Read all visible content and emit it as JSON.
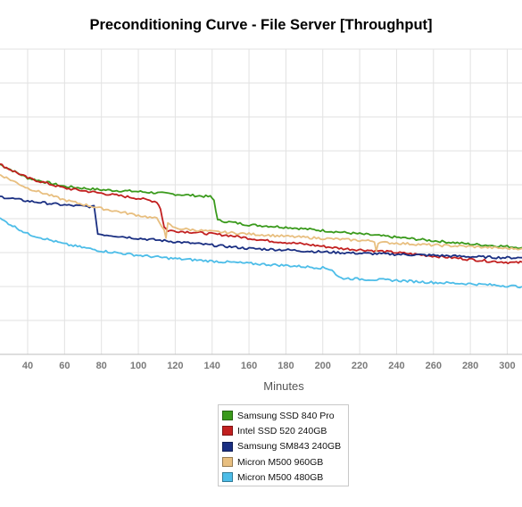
{
  "chart_data": {
    "type": "line",
    "title": "Preconditioning Curve - File Server [Throughput]",
    "xlabel": "Minutes",
    "ylabel": "",
    "xlim": [
      25,
      308
    ],
    "ylim": [
      0,
      9
    ],
    "x_ticks": [
      40,
      60,
      80,
      100,
      120,
      140,
      160,
      180,
      200,
      220,
      240,
      260,
      280,
      300
    ],
    "grid": true,
    "legend_position": "bottom-center",
    "series": [
      {
        "name": "Samsung SSD 840 Pro",
        "color": "#3a9a1c",
        "x": [
          25,
          40,
          60,
          80,
          100,
          120,
          139,
          141,
          143,
          160,
          180,
          200,
          220,
          240,
          260,
          280,
          300,
          308
        ],
        "y": [
          5.6,
          5.2,
          4.95,
          4.85,
          4.8,
          4.72,
          4.65,
          4.55,
          3.95,
          3.82,
          3.75,
          3.65,
          3.55,
          3.45,
          3.35,
          3.25,
          3.18,
          3.15
        ]
      },
      {
        "name": "Intel SSD 520 240GB",
        "color": "#c22020",
        "x": [
          25,
          40,
          60,
          80,
          100,
          110,
          112,
          114,
          116,
          130,
          150,
          170,
          190,
          210,
          230,
          250,
          270,
          290,
          305,
          308
        ],
        "y": [
          5.6,
          5.2,
          4.9,
          4.75,
          4.6,
          4.5,
          4.3,
          3.75,
          3.65,
          3.6,
          3.5,
          3.35,
          3.25,
          3.12,
          3.05,
          2.95,
          2.85,
          2.75,
          2.7,
          2.72
        ]
      },
      {
        "name": "Samsung SM843 240GB",
        "color": "#1a2f82",
        "x": [
          25,
          40,
          60,
          76,
          77,
          78,
          100,
          120,
          140,
          160,
          180,
          200,
          220,
          240,
          260,
          280,
          300,
          308
        ],
        "y": [
          4.65,
          4.52,
          4.4,
          4.35,
          4.0,
          3.55,
          3.42,
          3.32,
          3.22,
          3.12,
          3.08,
          3.02,
          2.98,
          2.95,
          2.92,
          2.88,
          2.85,
          2.85
        ]
      },
      {
        "name": "Micron M500 960GB",
        "color": "#e8bf80",
        "x": [
          25,
          40,
          60,
          80,
          100,
          110,
          114,
          115,
          116,
          120,
          140,
          160,
          180,
          200,
          220,
          228,
          229,
          230,
          240,
          260,
          280,
          300,
          308
        ],
        "y": [
          5.3,
          4.9,
          4.55,
          4.3,
          4.1,
          4.0,
          3.7,
          3.4,
          3.85,
          3.72,
          3.62,
          3.55,
          3.48,
          3.42,
          3.36,
          3.34,
          3.05,
          3.3,
          3.28,
          3.22,
          3.18,
          3.12,
          3.12
        ]
      },
      {
        "name": "Micron M500 480GB",
        "color": "#4dbde8",
        "x": [
          25,
          40,
          60,
          80,
          100,
          120,
          140,
          160,
          180,
          200,
          205,
          208,
          210,
          220,
          240,
          260,
          280,
          300,
          308
        ],
        "y": [
          4.0,
          3.55,
          3.25,
          3.05,
          2.92,
          2.82,
          2.75,
          2.68,
          2.62,
          2.55,
          2.5,
          2.3,
          2.25,
          2.22,
          2.18,
          2.12,
          2.08,
          2.02,
          2.0
        ]
      }
    ]
  }
}
